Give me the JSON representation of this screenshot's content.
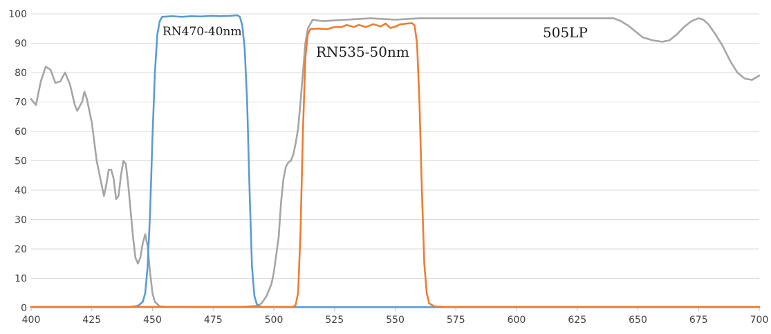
{
  "chart_data": {
    "type": "line",
    "title": "",
    "xlabel": "",
    "ylabel": "",
    "xlim": [
      400,
      700
    ],
    "ylim": [
      0,
      100
    ],
    "x_ticks": [
      400,
      425,
      450,
      475,
      500,
      525,
      550,
      575,
      600,
      625,
      650,
      675,
      700
    ],
    "y_ticks": [
      0,
      10,
      20,
      30,
      40,
      50,
      60,
      70,
      80,
      90,
      100
    ],
    "grid": "horizontal",
    "legend": "none",
    "annotations": [
      {
        "text": "RN470-40nm",
        "x": 472,
        "y": 96
      },
      {
        "text": "RN535-50nm",
        "x": 535,
        "y": 86
      },
      {
        "text": "505LP",
        "x": 614,
        "y": 92
      }
    ],
    "series": [
      {
        "color": "#a5a5a5",
        "points": [
          [
            400,
            71
          ],
          [
            402,
            69
          ],
          [
            404,
            77
          ],
          [
            406,
            82
          ],
          [
            408,
            81
          ],
          [
            410,
            76.5
          ],
          [
            412,
            77
          ],
          [
            414,
            80
          ],
          [
            416,
            76
          ],
          [
            418,
            69
          ],
          [
            419,
            67
          ],
          [
            421,
            70
          ],
          [
            422,
            73.5
          ],
          [
            423,
            71
          ],
          [
            425,
            63
          ],
          [
            427,
            50
          ],
          [
            429,
            42
          ],
          [
            430,
            38
          ],
          [
            431,
            42
          ],
          [
            432,
            47
          ],
          [
            433,
            47
          ],
          [
            434,
            44
          ],
          [
            435,
            37
          ],
          [
            436,
            38
          ],
          [
            437,
            45
          ],
          [
            438,
            50
          ],
          [
            439,
            49
          ],
          [
            440,
            42
          ],
          [
            441,
            33
          ],
          [
            442,
            24
          ],
          [
            443,
            17
          ],
          [
            444,
            15
          ],
          [
            445,
            17
          ],
          [
            446,
            22
          ],
          [
            447,
            25
          ],
          [
            448,
            21
          ],
          [
            449,
            12
          ],
          [
            450,
            5
          ],
          [
            451,
            2
          ],
          [
            453,
            0.5
          ],
          [
            456,
            0.3
          ],
          [
            470,
            0.2
          ],
          [
            485,
            0.2
          ],
          [
            493,
            0.6
          ],
          [
            495,
            1.5
          ],
          [
            497,
            4
          ],
          [
            499,
            8
          ],
          [
            500,
            12
          ],
          [
            502,
            24
          ],
          [
            503,
            36
          ],
          [
            504,
            44
          ],
          [
            505,
            48
          ],
          [
            506,
            49.5
          ],
          [
            507,
            50
          ],
          [
            508,
            52
          ],
          [
            509,
            56
          ],
          [
            510,
            61
          ],
          [
            511,
            70
          ],
          [
            512,
            80
          ],
          [
            513,
            90
          ],
          [
            514,
            95
          ],
          [
            516,
            98
          ],
          [
            520,
            97.5
          ],
          [
            530,
            98
          ],
          [
            540,
            98.5
          ],
          [
            550,
            98
          ],
          [
            560,
            98.5
          ],
          [
            575,
            98.5
          ],
          [
            590,
            98.5
          ],
          [
            600,
            98.5
          ],
          [
            615,
            98.5
          ],
          [
            630,
            98.5
          ],
          [
            640,
            98.5
          ],
          [
            643,
            97.5
          ],
          [
            646,
            96
          ],
          [
            649,
            94
          ],
          [
            652,
            92
          ],
          [
            656,
            91
          ],
          [
            660,
            90.5
          ],
          [
            663,
            91
          ],
          [
            666,
            93
          ],
          [
            669,
            95.5
          ],
          [
            672,
            97.5
          ],
          [
            675,
            98.5
          ],
          [
            677,
            98
          ],
          [
            679,
            96.5
          ],
          [
            682,
            93
          ],
          [
            685,
            89
          ],
          [
            688,
            84
          ],
          [
            691,
            80
          ],
          [
            694,
            78
          ],
          [
            697,
            77.5
          ],
          [
            700,
            79
          ]
        ]
      },
      {
        "color": "#5b9bd5",
        "points": [
          [
            400,
            0.2
          ],
          [
            440,
            0.2
          ],
          [
            444,
            0.6
          ],
          [
            446,
            2
          ],
          [
            447,
            5
          ],
          [
            448,
            14
          ],
          [
            449,
            32
          ],
          [
            450,
            58
          ],
          [
            451,
            80
          ],
          [
            452,
            93
          ],
          [
            453,
            97.5
          ],
          [
            454,
            99
          ],
          [
            458,
            99.2
          ],
          [
            462,
            99
          ],
          [
            466,
            99.2
          ],
          [
            470,
            99.1
          ],
          [
            474,
            99.3
          ],
          [
            478,
            99.2
          ],
          [
            482,
            99.3
          ],
          [
            485,
            99.5
          ],
          [
            486,
            99
          ],
          [
            487,
            96
          ],
          [
            488,
            88
          ],
          [
            489,
            70
          ],
          [
            490,
            40
          ],
          [
            491,
            14
          ],
          [
            492,
            4
          ],
          [
            493,
            1.2
          ],
          [
            494,
            0.5
          ],
          [
            496,
            0.2
          ],
          [
            700,
            0.2
          ]
        ]
      },
      {
        "color": "#ed7d31",
        "points": [
          [
            400,
            0.3
          ],
          [
            508,
            0.3
          ],
          [
            509,
            1
          ],
          [
            510,
            5
          ],
          [
            511,
            26
          ],
          [
            512,
            60
          ],
          [
            513,
            85
          ],
          [
            514,
            93
          ],
          [
            515,
            94.8
          ],
          [
            518,
            95
          ],
          [
            522,
            94.8
          ],
          [
            525,
            95.5
          ],
          [
            528,
            95.5
          ],
          [
            530,
            96.2
          ],
          [
            533,
            95.5
          ],
          [
            535,
            96.2
          ],
          [
            538,
            95.5
          ],
          [
            541,
            96.5
          ],
          [
            544,
            95.7
          ],
          [
            546,
            96.7
          ],
          [
            548,
            95.2
          ],
          [
            550,
            95.6
          ],
          [
            552,
            96.4
          ],
          [
            555,
            96.7
          ],
          [
            557,
            96.8
          ],
          [
            558,
            96
          ],
          [
            559,
            90
          ],
          [
            560,
            70
          ],
          [
            561,
            40
          ],
          [
            562,
            15
          ],
          [
            563,
            5
          ],
          [
            564,
            1.5
          ],
          [
            566,
            0.5
          ],
          [
            570,
            0.3
          ],
          [
            700,
            0.3
          ]
        ]
      }
    ]
  }
}
